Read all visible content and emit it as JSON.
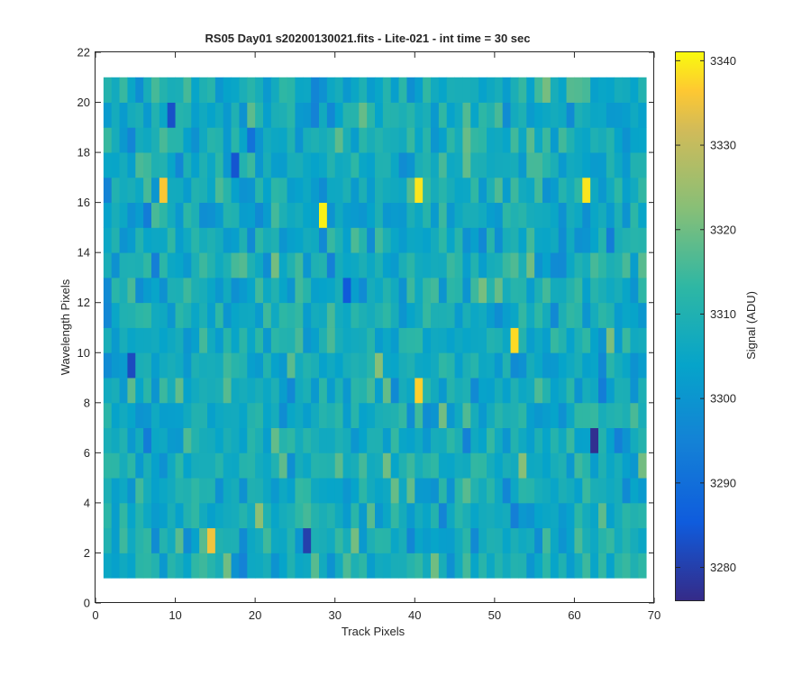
{
  "chart_data": {
    "type": "heatmap",
    "title": "RS05 Day01  s20200130021.fits - Lite-021 - int time = 30 sec",
    "xlabel": "Track Pixels",
    "ylabel": "Wavelength Pixels",
    "xlim": [
      0,
      70
    ],
    "ylim": [
      0,
      22
    ],
    "x_ticks": [
      "0",
      "10",
      "20",
      "30",
      "40",
      "50",
      "60",
      "70"
    ],
    "y_ticks": [
      "0",
      "2",
      "4",
      "6",
      "8",
      "10",
      "12",
      "14",
      "16",
      "18",
      "20",
      "22"
    ],
    "x_range": [
      1,
      69
    ],
    "y_range": [
      1,
      21
    ],
    "columns": 68,
    "rows": 20,
    "grid": false,
    "colorbar": {
      "label": "Signal (ADU)",
      "min": 3276,
      "max": 3341,
      "ticks": [
        "3280",
        "3290",
        "3300",
        "3310",
        "3320",
        "3330",
        "3340"
      ],
      "colormap": "parula"
    },
    "value_center": 3307,
    "value_spread": 9,
    "highlights": [
      {
        "col": 28,
        "row": 15,
        "value": 3340
      },
      {
        "col": 40,
        "row": 16,
        "value": 3339
      },
      {
        "col": 61,
        "row": 16,
        "value": 3339
      },
      {
        "col": 52,
        "row": 10,
        "value": 3338
      },
      {
        "col": 40,
        "row": 8,
        "value": 3337
      },
      {
        "col": 8,
        "row": 16,
        "value": 3336
      },
      {
        "col": 14,
        "row": 2,
        "value": 3335
      },
      {
        "col": 62,
        "row": 6,
        "value": 3277
      },
      {
        "col": 26,
        "row": 2,
        "value": 3280
      },
      {
        "col": 4,
        "row": 9,
        "value": 3282
      },
      {
        "col": 9,
        "row": 19,
        "value": 3283
      },
      {
        "col": 17,
        "row": 17,
        "value": 3284
      },
      {
        "col": 31,
        "row": 12,
        "value": 3285
      }
    ]
  }
}
